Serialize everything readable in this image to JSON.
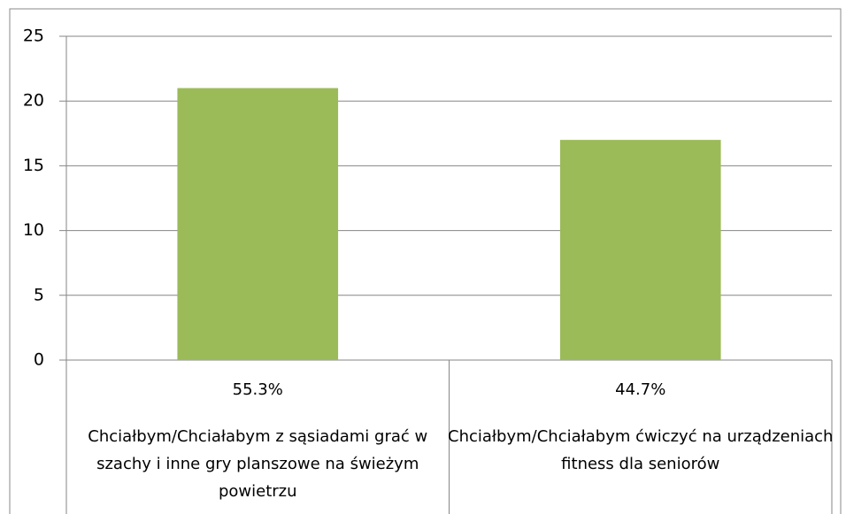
{
  "chart_data": {
    "type": "bar",
    "categories": [
      "Chciałbym/Chciałabym z sąsiadami grać w szachy i inne gry planszowe na świeżym powietrzu",
      "Chciałbym/Chciałabym ćwiczyć na urządzeniach fitness dla seniorów"
    ],
    "percent_labels": [
      "55.3%",
      "44.7%"
    ],
    "values": [
      21,
      17
    ],
    "color": "#9bbb59",
    "ylim": [
      0,
      25
    ],
    "yticks": [
      0,
      5,
      10,
      15,
      20,
      25
    ],
    "grid": true
  }
}
